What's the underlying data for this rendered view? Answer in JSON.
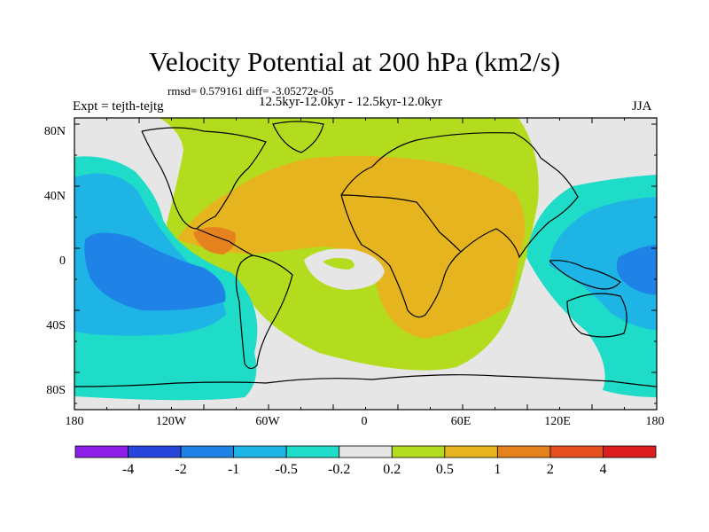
{
  "title": "Velocity Potential at 200 hPa (km2/s)",
  "stats": "rmsd= 0.579161 diff= -3.05272e-05",
  "period": "12.5kyr-12.0kyr - 12.5kyr-12.0kyr",
  "experiment": "Expt = tejth-tejtg",
  "season": "JJA",
  "map": {
    "lat_labels": [
      "80N",
      "40N",
      "0",
      "40S",
      "80S"
    ],
    "lon_labels": [
      "180",
      "120W",
      "60W",
      "0",
      "60E",
      "120E",
      "180"
    ]
  },
  "colorbar": {
    "labels": [
      "-4",
      "-2",
      "-1",
      "-0.5",
      "-0.2",
      "0.2",
      "0.5",
      "1",
      "2",
      "4"
    ],
    "colors": [
      "#8c1ee6",
      "#2846dc",
      "#1e82e6",
      "#1eb4e6",
      "#1edcc8",
      "#e6e6e6",
      "#b4dc1e",
      "#e6b41e",
      "#e6821e",
      "#e6501e",
      "#dc1e1e"
    ]
  },
  "palette": {
    "blue": "#1e82e6",
    "cyan": "#1eb4e6",
    "teal": "#1edcc8",
    "gray": "#e6e6e6",
    "lime": "#b4dc1e",
    "gold": "#e6b41e",
    "orange": "#e6821e",
    "coast": "#000000"
  }
}
